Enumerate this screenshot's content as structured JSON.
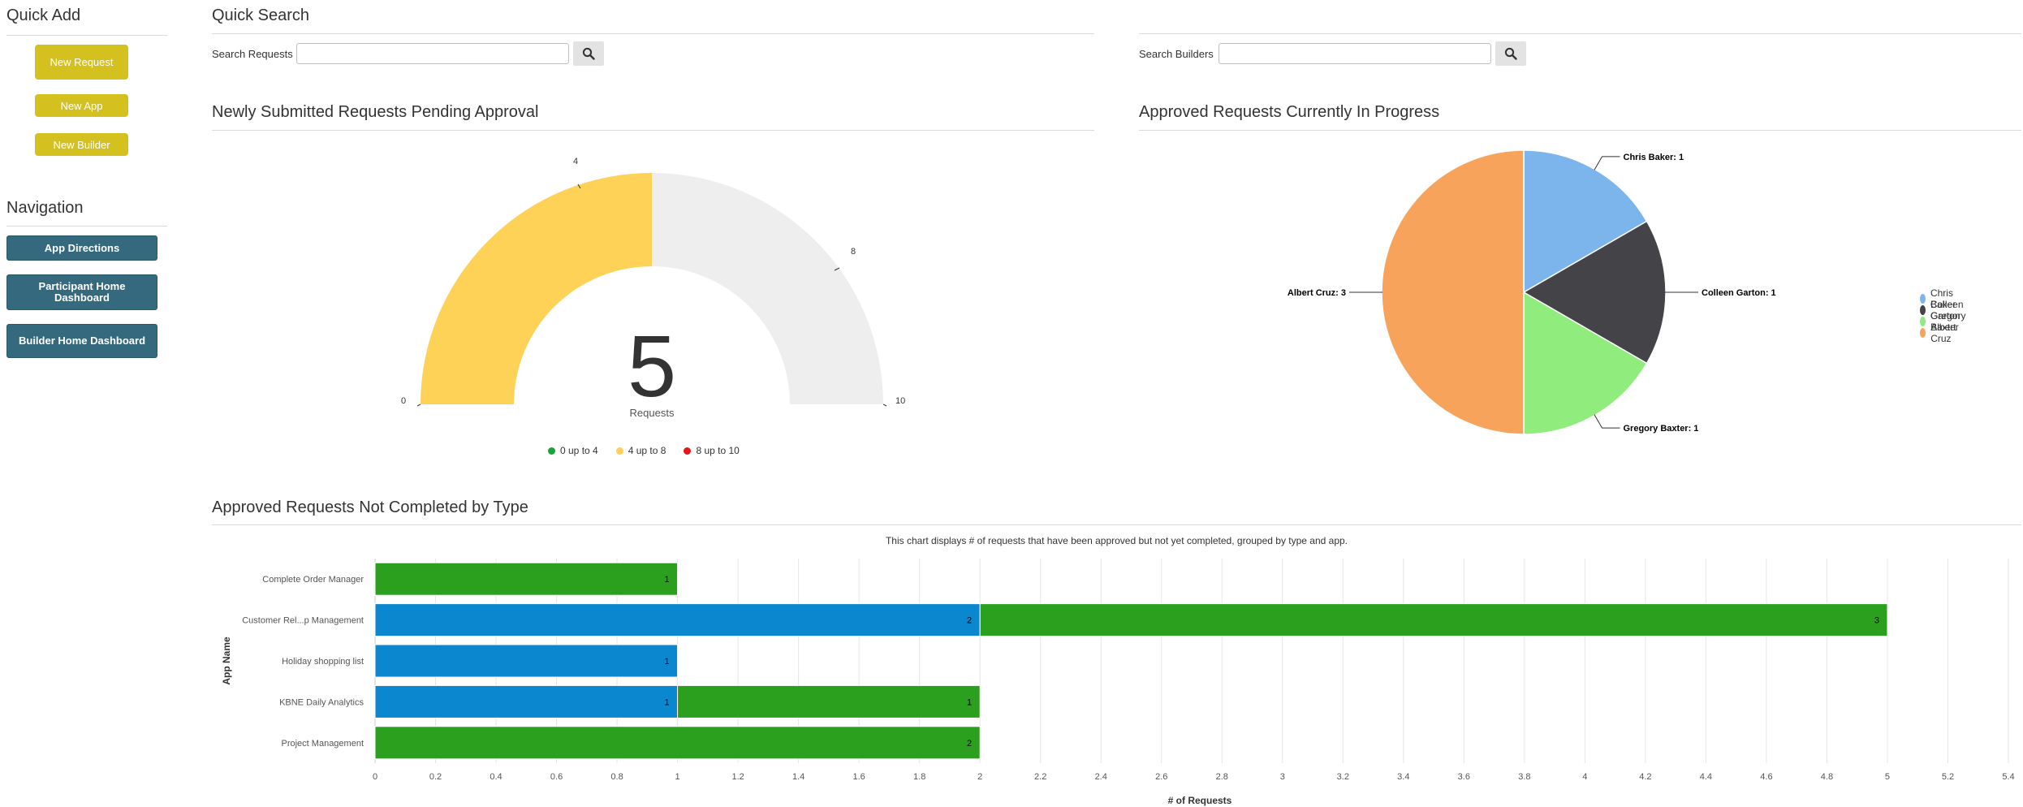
{
  "quick_add": {
    "title": "Quick Add",
    "buttons": [
      "New Request",
      "New App",
      "New Builder"
    ]
  },
  "navigation": {
    "title": "Navigation",
    "buttons": [
      "App Directions",
      "Participant Home Dashboard",
      "Builder Home Dashboard"
    ]
  },
  "quick_search": {
    "title": "Quick Search",
    "requests_label": "Search Requests",
    "builders_label": "Search Builders"
  },
  "gauge": {
    "title": "Newly Submitted Requests Pending Approval",
    "value": "5",
    "unit": "Requests",
    "min_label": "0",
    "tick_4": "4",
    "tick_8": "8",
    "max_label": "10",
    "bands": [
      {
        "label": "0 up to 4",
        "color": "#1aa33a"
      },
      {
        "label": "4 up to 8",
        "color": "#fdd257"
      },
      {
        "label": "8 up to 10",
        "color": "#e2171c"
      }
    ]
  },
  "pie": {
    "title": "Approved Requests Currently In Progress",
    "slices": [
      {
        "name": "Chris Baker",
        "value": 1,
        "color": "#7cb5ec",
        "label": "Chris Baker: 1"
      },
      {
        "name": "Colleen Garton",
        "value": 1,
        "color": "#434348",
        "label": "Colleen Garton: 1"
      },
      {
        "name": "Gregory Baxter",
        "value": 1,
        "color": "#90ed7d",
        "label": "Gregory Baxter: 1"
      },
      {
        "name": "Albert Cruz",
        "value": 3,
        "color": "#f7a35c",
        "label": "Albert Cruz: 3"
      }
    ]
  },
  "bar_section": {
    "title": "Approved Requests Not Completed by Type",
    "subtitle": "This chart displays # of requests that have been approved but not yet completed, grouped by type and app."
  },
  "chart_data": {
    "type": "bar",
    "orientation": "horizontal",
    "stacked": true,
    "categories": [
      "Complete Order Manager",
      "Customer Rel...p Management",
      "Holiday shopping list",
      "KBNE Daily Analytics",
      "Project Management"
    ],
    "series": [
      {
        "color": "#0b87d0",
        "values": [
          0,
          2,
          1,
          1,
          0
        ]
      },
      {
        "color": "#2ba01f",
        "values": [
          1,
          3,
          0,
          1,
          2
        ]
      }
    ],
    "xlabel": "# of Requests",
    "ylabel": "App Name",
    "xlim": [
      0,
      5.4
    ],
    "xticks": [
      "0",
      "0.2",
      "0.4",
      "0.6",
      "0.8",
      "1",
      "1.2",
      "1.4",
      "1.6",
      "1.8",
      "2",
      "2.2",
      "2.4",
      "2.6",
      "2.8",
      "3",
      "3.2",
      "3.4",
      "3.6",
      "3.8",
      "4",
      "4.2",
      "4.4",
      "4.6",
      "4.8",
      "5",
      "5.2",
      "5.4"
    ],
    "grid": true
  }
}
